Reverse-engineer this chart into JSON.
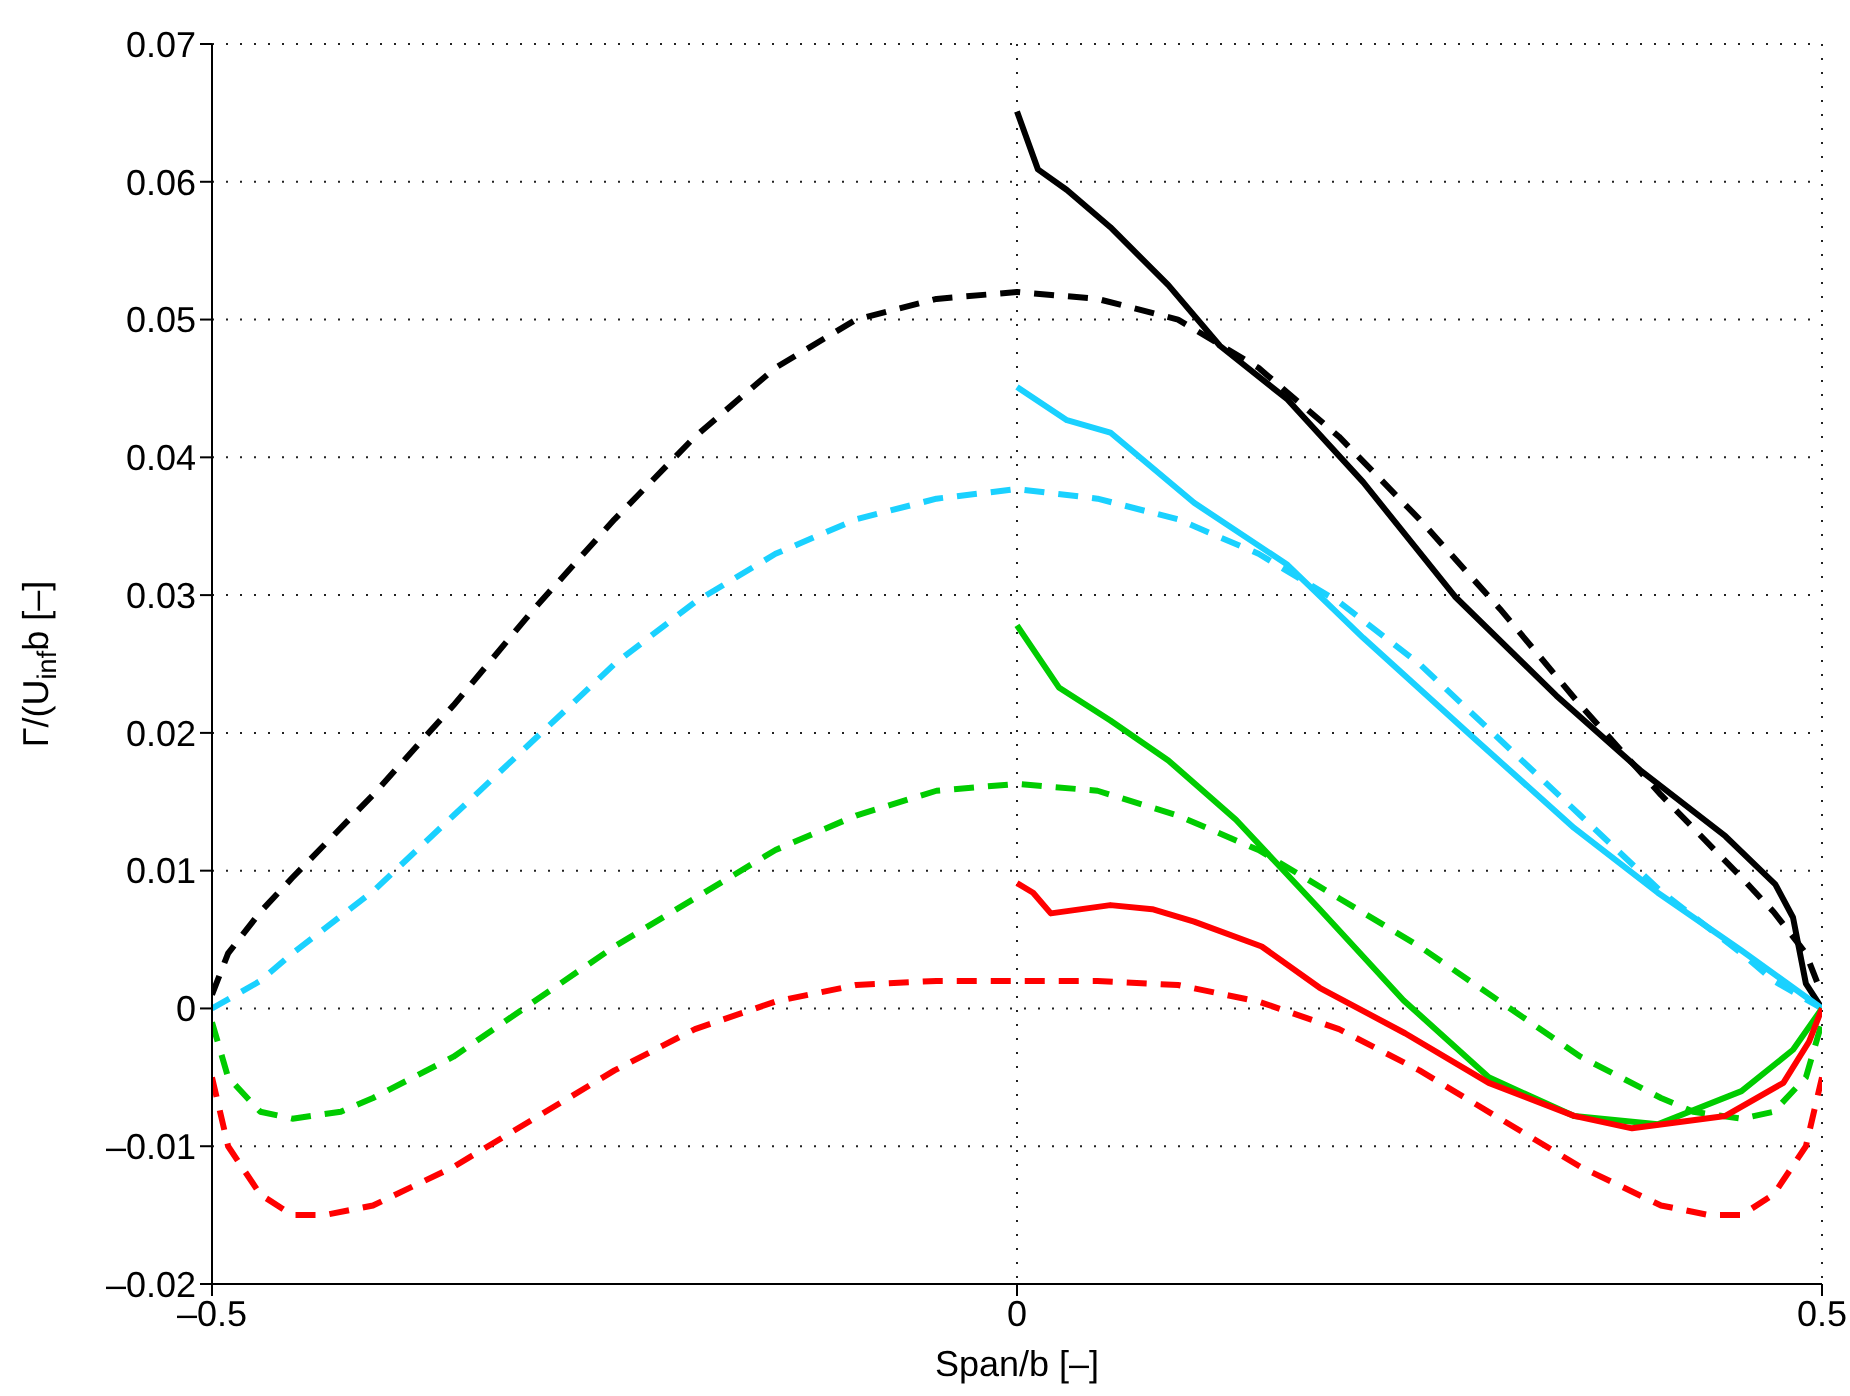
{
  "chart_data": {
    "type": "line",
    "xlabel": "Span/b [–]",
    "ylabel": "Γ/(U$_{inf}$b [–]",
    "xlim": [
      -0.5,
      0.5
    ],
    "xticks": [
      {
        "value": -0.5,
        "label": "–0.5"
      },
      0,
      0.5
    ],
    "ylim": [
      -0.02,
      0.07
    ],
    "yticks": [
      {
        "value": -0.02,
        "label": "–0.02"
      },
      {
        "value": -0.01,
        "label": "–0.01"
      },
      0,
      0.01,
      0.02,
      0.03,
      0.04,
      0.05,
      0.06,
      0.07
    ],
    "grid": true,
    "marker": "none",
    "series": [
      {
        "color": "#000000",
        "line_style": "dashed",
        "x": [
          -0.5,
          -0.49,
          -0.47,
          -0.45,
          -0.4,
          -0.35,
          -0.3,
          -0.25,
          -0.2,
          -0.15,
          -0.1,
          -0.05,
          0,
          0.05,
          0.1,
          0.15,
          0.2,
          0.25,
          0.3,
          0.35,
          0.4,
          0.45,
          0.47,
          0.49,
          0.5
        ],
        "values": [
          0.001,
          0.004,
          0.007,
          0.0095,
          0.0155,
          0.022,
          0.029,
          0.0355,
          0.0415,
          0.0465,
          0.05,
          0.0515,
          0.052,
          0.0515,
          0.05,
          0.0465,
          0.0415,
          0.0355,
          0.029,
          0.022,
          0.0155,
          0.0095,
          0.007,
          0.004,
          0.001
        ]
      },
      {
        "color": "#1ad1ff",
        "line_style": "dashed",
        "x": [
          -0.5,
          -0.47,
          -0.45,
          -0.4,
          -0.35,
          -0.3,
          -0.25,
          -0.2,
          -0.15,
          -0.1,
          -0.05,
          0,
          0.05,
          0.1,
          0.15,
          0.2,
          0.25,
          0.3,
          0.35,
          0.4,
          0.45,
          0.47,
          0.5
        ],
        "values": [
          0,
          0.002,
          0.004,
          0.0085,
          0.014,
          0.0195,
          0.025,
          0.0295,
          0.033,
          0.0355,
          0.037,
          0.0377,
          0.037,
          0.0355,
          0.033,
          0.0295,
          0.025,
          0.0195,
          0.014,
          0.0085,
          0.004,
          0.002,
          0
        ]
      },
      {
        "color": "#00cc00",
        "line_style": "dashed",
        "x": [
          -0.5,
          -0.49,
          -0.47,
          -0.45,
          -0.42,
          -0.4,
          -0.35,
          -0.3,
          -0.25,
          -0.2,
          -0.15,
          -0.1,
          -0.05,
          0,
          0.05,
          0.1,
          0.15,
          0.2,
          0.25,
          0.3,
          0.35,
          0.4,
          0.42,
          0.45,
          0.47,
          0.49,
          0.5
        ],
        "values": [
          -0.001,
          -0.005,
          -0.0075,
          -0.008,
          -0.0075,
          -0.0065,
          -0.0035,
          0.0005,
          0.0045,
          0.008,
          0.0115,
          0.014,
          0.0158,
          0.0163,
          0.0158,
          0.014,
          0.0115,
          0.008,
          0.0045,
          0.0005,
          -0.0035,
          -0.0065,
          -0.0075,
          -0.008,
          -0.0075,
          -0.005,
          -0.001
        ]
      },
      {
        "color": "#ff0000",
        "line_style": "dashed",
        "x": [
          -0.5,
          -0.49,
          -0.47,
          -0.45,
          -0.43,
          -0.4,
          -0.35,
          -0.3,
          -0.25,
          -0.2,
          -0.15,
          -0.1,
          -0.05,
          0,
          0.05,
          0.1,
          0.15,
          0.2,
          0.25,
          0.3,
          0.35,
          0.4,
          0.43,
          0.45,
          0.47,
          0.49,
          0.5
        ],
        "values": [
          -0.005,
          -0.01,
          -0.0135,
          -0.015,
          -0.015,
          -0.0143,
          -0.0115,
          -0.008,
          -0.0045,
          -0.0015,
          0.0005,
          0.0017,
          0.002,
          0.002,
          0.002,
          0.0017,
          0.0005,
          -0.0015,
          -0.0045,
          -0.008,
          -0.0115,
          -0.0143,
          -0.015,
          -0.015,
          -0.0135,
          -0.01,
          -0.005
        ]
      },
      {
        "color": "#000000",
        "line_style": "solid",
        "x": [
          0,
          0.013,
          0.031,
          0.058,
          0.094,
          0.126,
          0.168,
          0.215,
          0.272,
          0.335,
          0.387,
          0.44,
          0.471,
          0.482,
          0.49,
          0.5
        ],
        "values": [
          0.0651,
          0.0609,
          0.0594,
          0.0567,
          0.0525,
          0.0481,
          0.0442,
          0.0382,
          0.0299,
          0.0227,
          0.0173,
          0.0125,
          0.009,
          0.0066,
          0.0018,
          0
        ]
      },
      {
        "color": "#1ad1ff",
        "line_style": "solid",
        "x": [
          0,
          0.031,
          0.058,
          0.11,
          0.168,
          0.215,
          0.283,
          0.346,
          0.398,
          0.45,
          0.5
        ],
        "values": [
          0.0451,
          0.0427,
          0.0418,
          0.0367,
          0.0322,
          0.0269,
          0.0197,
          0.0131,
          0.0084,
          0.0042,
          0
        ]
      },
      {
        "color": "#00cc00",
        "line_style": "solid",
        "x": [
          0,
          0.026,
          0.058,
          0.094,
          0.136,
          0.188,
          0.24,
          0.293,
          0.346,
          0.398,
          0.45,
          0.482,
          0.5
        ],
        "values": [
          0.0278,
          0.0233,
          0.0209,
          0.018,
          0.0137,
          0.0072,
          0.0006,
          -0.005,
          -0.0078,
          -0.0084,
          -0.006,
          -0.003,
          0
        ]
      },
      {
        "color": "#ff0000",
        "line_style": "solid",
        "x": [
          0,
          0.01,
          0.021,
          0.058,
          0.084,
          0.11,
          0.152,
          0.188,
          0.241,
          0.293,
          0.346,
          0.382,
          0.44,
          0.476,
          0.492,
          0.5
        ],
        "values": [
          0.0091,
          0.0084,
          0.0069,
          0.0075,
          0.0072,
          0.0063,
          0.0045,
          0.0015,
          -0.0018,
          -0.0054,
          -0.0078,
          -0.0087,
          -0.0078,
          -0.0054,
          -0.0024,
          0
        ]
      }
    ]
  }
}
